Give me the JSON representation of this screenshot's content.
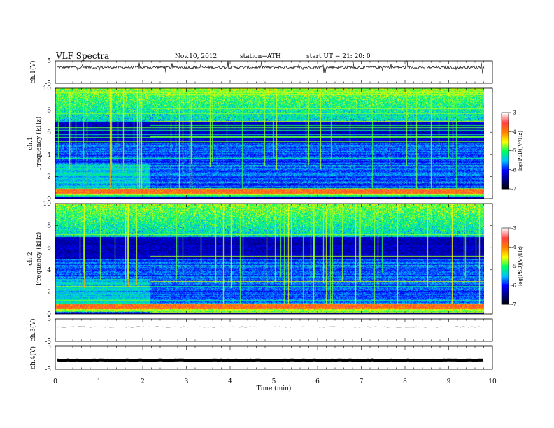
{
  "header": {
    "title": "VLF  Spectra",
    "date": "Nov.10, 2012",
    "station": "station=ATH",
    "start": "start  UT  =    21: 20: 0"
  },
  "chart_data": [
    {
      "type": "line",
      "channel": "ch.1(V)",
      "ylabel": "ch.1(V)",
      "ylim": [
        -5,
        5
      ],
      "yticks": [
        "5",
        "-5"
      ],
      "xlim": [
        0,
        10
      ],
      "description": "noisy waveform around ~2 V with sparse spikes"
    },
    {
      "type": "heatmap",
      "channel": "ch.1",
      "ylabel": "ch.1",
      "ylabel2": "Frequency  (kHz)",
      "ylim": [
        0,
        10
      ],
      "yticks": [
        "0",
        "2",
        "4",
        "6",
        "8",
        "10"
      ],
      "xlim": [
        0,
        10
      ],
      "data_end_min": 9.8,
      "colorbar": {
        "label": "log(PSD)(V²/Hz)",
        "range": [
          -7,
          -3
        ],
        "ticks": [
          "-3",
          "-4",
          "-5",
          "-6",
          "-7"
        ]
      }
    },
    {
      "type": "heatmap",
      "channel": "ch.2",
      "ylabel": "ch.2",
      "ylabel2": "Frequency  (kHz)",
      "ylim": [
        0,
        10
      ],
      "yticks": [
        "0",
        "2",
        "4",
        "6",
        "8",
        "10"
      ],
      "xlim": [
        0,
        10
      ],
      "data_end_min": 9.8,
      "colorbar": {
        "label": "log(PSD)(V²/Hz)",
        "range": [
          -7,
          -3
        ],
        "ticks": [
          "-3",
          "-4",
          "-5",
          "-6",
          "-7"
        ]
      }
    },
    {
      "type": "line",
      "channel": "ch.3(V)",
      "ylabel": "ch.3(V)",
      "ylim": [
        -5,
        5
      ],
      "yticks": [
        "5",
        "-5"
      ],
      "xlim": [
        0,
        10
      ],
      "description": "nearly flat trace slightly above zero"
    },
    {
      "type": "line",
      "channel": "ch.4(V)",
      "ylabel": "ch.4(V)",
      "ylim": [
        -5,
        5
      ],
      "yticks": [
        "5",
        "-5"
      ],
      "xlim": [
        0,
        10
      ],
      "description": "thick flat trace at about -1 V"
    }
  ],
  "xaxis": {
    "label": "Time  (min)",
    "ticks": [
      "0",
      "1",
      "2",
      "3",
      "4",
      "5",
      "6",
      "7",
      "8",
      "9",
      "10"
    ],
    "range": [
      0,
      10
    ]
  },
  "colors": {
    "colormap": [
      "#000000",
      "#000080",
      "#0000ff",
      "#00c0ff",
      "#00ff60",
      "#ffff00",
      "#ff8000",
      "#ff4040",
      "#ffffff"
    ],
    "trace": "#000000"
  }
}
